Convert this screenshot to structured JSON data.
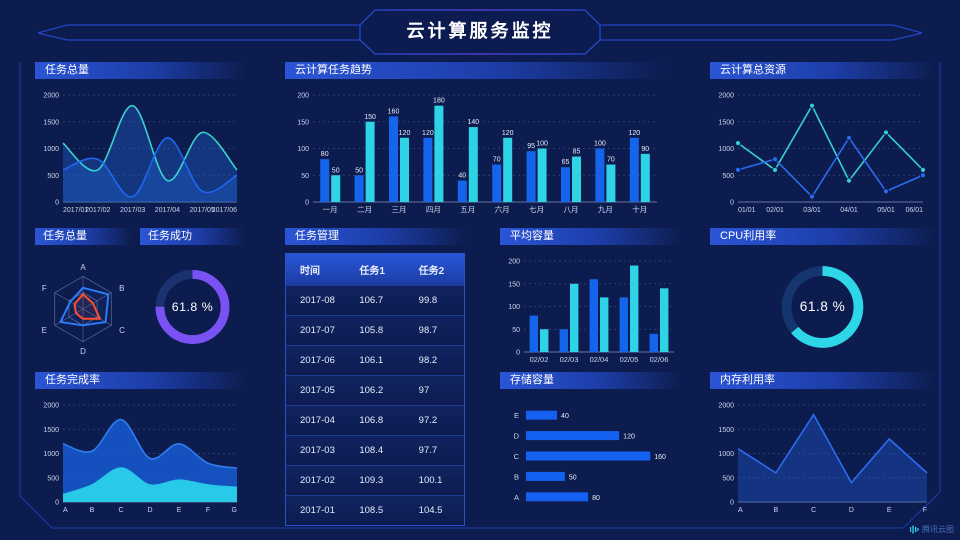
{
  "header": {
    "title": "云计算服务监控"
  },
  "footer": {
    "brand": "腾讯云图"
  },
  "panels": {
    "task_total_line": {
      "title": "任务总量"
    },
    "cloud_task_trend": {
      "title": "云计算任务趋势"
    },
    "cloud_total_resource": {
      "title": "云计算总资源"
    },
    "task_total_radar": {
      "title": "任务总量"
    },
    "task_success": {
      "title": "任务成功"
    },
    "task_table": {
      "title": "任务管理",
      "columns": [
        "时间",
        "任务1",
        "任务2"
      ],
      "rows": [
        [
          "2017-08",
          "106.7",
          "99.8"
        ],
        [
          "2017-07",
          "105.8",
          "98.7"
        ],
        [
          "2017-06",
          "106.1",
          "98.2"
        ],
        [
          "2017-05",
          "106.2",
          "97"
        ],
        [
          "2017-04",
          "106.8",
          "97.2"
        ],
        [
          "2017-03",
          "108.4",
          "97.7"
        ],
        [
          "2017-02",
          "109.3",
          "100.1"
        ],
        [
          "2017-01",
          "108.5",
          "104.5"
        ]
      ]
    },
    "avg_capacity": {
      "title": "平均容量"
    },
    "cpu_usage": {
      "title": "CPU利用率"
    },
    "task_completion": {
      "title": "任务完成率"
    },
    "storage_capacity": {
      "title": "存储容量"
    },
    "memory_usage": {
      "title": "内存利用率"
    }
  },
  "chart_data": [
    {
      "id": "task-total",
      "type": "area",
      "title": "任务总量",
      "smooth": true,
      "x": [
        "2017/01",
        "2017/02",
        "2017/03",
        "2017/04",
        "2017/05",
        "2017/06"
      ],
      "ylim": [
        0,
        2000
      ],
      "yticks": [
        0,
        500,
        1000,
        1500,
        2000
      ],
      "grid": true,
      "series": [
        {
          "name": "cyan",
          "color": "#3bd1cf",
          "fill": "rgba(32,96,205,0.38)",
          "values": [
            1100,
            600,
            1800,
            400,
            1300,
            600
          ]
        },
        {
          "name": "blue",
          "color": "#1f66f2",
          "fill": "rgba(32,96,205,0.38)",
          "values": [
            600,
            800,
            100,
            1200,
            200,
            500
          ]
        }
      ]
    },
    {
      "id": "cloud-task-trend",
      "type": "bar",
      "title": "云计算任务趋势",
      "labels": true,
      "categories": [
        "一月",
        "二月",
        "三月",
        "四月",
        "五月",
        "六月",
        "七月",
        "八月",
        "九月",
        "十月"
      ],
      "ylim": [
        0,
        200
      ],
      "yticks": [
        0,
        50,
        100,
        150,
        200
      ],
      "grid": true,
      "series": [
        {
          "name": "blue",
          "color": "#1565ec",
          "values": [
            80,
            50,
            160,
            120,
            40,
            70,
            95,
            65,
            100,
            120
          ]
        },
        {
          "name": "cyan",
          "color": "#2fd3e6",
          "values": [
            50,
            150,
            120,
            180,
            140,
            120,
            100,
            85,
            70,
            90
          ]
        }
      ]
    },
    {
      "id": "cloud-total-resource",
      "type": "line",
      "title": "云计算总资源",
      "markers": true,
      "x": [
        "01/01",
        "02/01",
        "03/01",
        "04/01",
        "05/01",
        "06/01"
      ],
      "ylim": [
        0,
        2000
      ],
      "yticks": [
        0,
        500,
        1000,
        1500,
        2000
      ],
      "grid": true,
      "series": [
        {
          "name": "cyan",
          "color": "#35d0cf",
          "values": [
            1100,
            600,
            1800,
            400,
            1300,
            600
          ]
        },
        {
          "name": "blue",
          "color": "#2a6cf0",
          "values": [
            600,
            800,
            100,
            1200,
            200,
            500
          ]
        }
      ]
    },
    {
      "id": "task-total-radar",
      "type": "radar",
      "title": "任务总量",
      "axes": [
        "A",
        "B",
        "C",
        "D",
        "E",
        "F"
      ],
      "max": 100,
      "levels": [
        0.5,
        1
      ],
      "series": [
        {
          "name": "blue",
          "color": "#2e7bf6",
          "values": [
            65,
            90,
            80,
            50,
            80,
            45
          ]
        },
        {
          "name": "red",
          "color": "#ff4d30",
          "values": [
            45,
            35,
            60,
            30,
            25,
            30
          ]
        }
      ]
    },
    {
      "id": "task-success",
      "type": "donut",
      "title": "任务成功",
      "percent": "61.8 %",
      "arc_degrees": 270,
      "color": "#7a52f4",
      "track": "#1a3270"
    },
    {
      "id": "avg-capacity",
      "type": "bar",
      "title": "平均容量",
      "labels": false,
      "categories": [
        "02/02",
        "02/03",
        "02/04",
        "02/05",
        "02/06"
      ],
      "ylim": [
        0,
        200
      ],
      "yticks": [
        0,
        50,
        100,
        150,
        200
      ],
      "grid": true,
      "series": [
        {
          "name": "blue",
          "color": "#1565ec",
          "values": [
            80,
            50,
            160,
            120,
            40
          ]
        },
        {
          "name": "cyan",
          "color": "#2fd3e6",
          "values": [
            50,
            150,
            120,
            190,
            140
          ]
        }
      ]
    },
    {
      "id": "cpu-usage",
      "type": "donut",
      "title": "CPU利用率",
      "percent": "61.8 %",
      "arc_degrees": 230,
      "color": "#2ed7e8",
      "track": "#15356e"
    },
    {
      "id": "task-completion",
      "type": "area-stacked",
      "title": "任务完成率",
      "smooth": true,
      "x": [
        "A",
        "B",
        "C",
        "D",
        "E",
        "F",
        "G"
      ],
      "ylim": [
        0,
        2000
      ],
      "yticks": [
        0,
        500,
        1000,
        1500,
        2000
      ],
      "grid": true,
      "series": [
        {
          "name": "blue",
          "color": "#2e7df2",
          "fill": "rgba(21,88,204,0.9)",
          "values": [
            1200,
            1050,
            1700,
            900,
            1200,
            800,
            700
          ]
        },
        {
          "name": "cyan",
          "color": "#2ac8e8",
          "fill": "#29c9e9",
          "values": [
            150,
            350,
            700,
            350,
            450,
            350,
            300
          ]
        }
      ]
    },
    {
      "id": "storage-capacity",
      "type": "hbar",
      "title": "存储容量",
      "categories": [
        "E",
        "D",
        "C",
        "B",
        "A"
      ],
      "values": [
        40,
        120,
        160,
        50,
        80
      ],
      "xmax": 170,
      "color": "#1460f0"
    },
    {
      "id": "memory-usage",
      "type": "area",
      "title": "内存利用率",
      "smooth": false,
      "x": [
        "A",
        "B",
        "C",
        "D",
        "E",
        "F"
      ],
      "ylim": [
        0,
        2000
      ],
      "yticks": [
        0,
        500,
        1000,
        1500,
        2000
      ],
      "grid": true,
      "series": [
        {
          "name": "blue",
          "color": "#2a6cf0",
          "fill": "rgba(30,85,200,0.42)",
          "values": [
            1100,
            600,
            1800,
            400,
            1300,
            600
          ]
        }
      ]
    }
  ]
}
